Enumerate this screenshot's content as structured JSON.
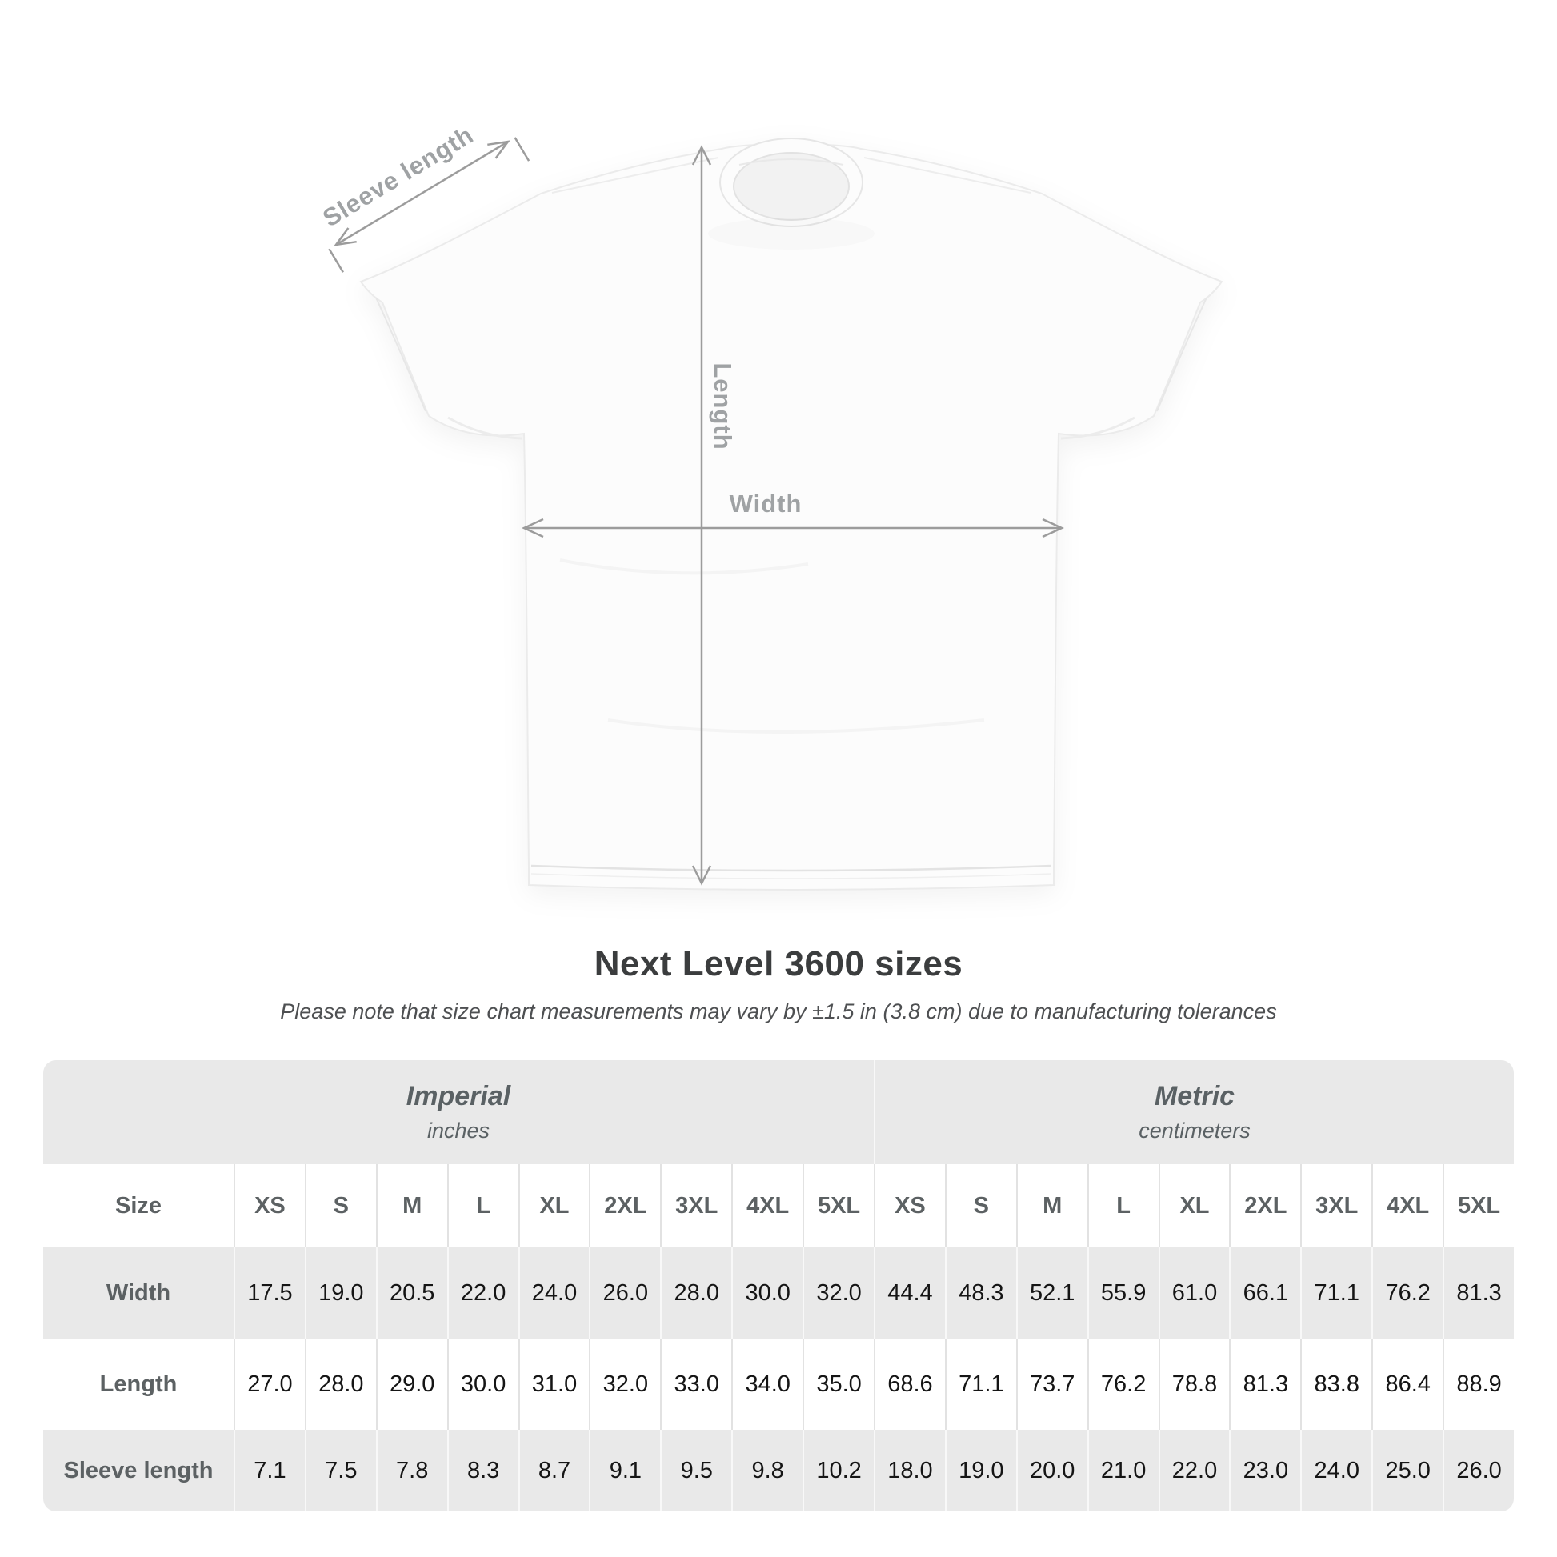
{
  "shirt_diagram": {
    "labels": {
      "sleeve": "Sleeve length",
      "length": "Length",
      "width": "Width"
    },
    "colors": {
      "arrow": "#9c9c9c",
      "label": "#9fa2a4",
      "shirt_fill": "#fcfcfc",
      "shirt_edge": "#ebebeb"
    }
  },
  "heading": {
    "title": "Next Level 3600 sizes",
    "subtitle": "Please note that size chart measurements may vary by ±1.5 in (3.8 cm) due to manufacturing tolerances"
  },
  "table": {
    "size_label": "Size",
    "unit_groups": [
      {
        "name": "Imperial",
        "unit": "inches"
      },
      {
        "name": "Metric",
        "unit": "centimeters"
      }
    ],
    "size_headers": [
      "XS",
      "S",
      "M",
      "L",
      "XL",
      "2XL",
      "3XL",
      "4XL",
      "5XL",
      "XS",
      "S",
      "M",
      "L",
      "XL",
      "2XL",
      "3XL",
      "4XL",
      "5XL"
    ],
    "rows": [
      {
        "label": "Width",
        "values": [
          "17.5",
          "19.0",
          "20.5",
          "22.0",
          "24.0",
          "26.0",
          "28.0",
          "30.0",
          "32.0",
          "44.4",
          "48.3",
          "52.1",
          "55.9",
          "61.0",
          "66.1",
          "71.1",
          "76.2",
          "81.3"
        ]
      },
      {
        "label": "Length",
        "values": [
          "27.0",
          "28.0",
          "29.0",
          "30.0",
          "31.0",
          "32.0",
          "33.0",
          "34.0",
          "35.0",
          "68.6",
          "71.1",
          "73.7",
          "76.2",
          "78.8",
          "81.3",
          "83.8",
          "86.4",
          "88.9"
        ]
      },
      {
        "label": "Sleeve length",
        "values": [
          "7.1",
          "7.5",
          "7.8",
          "8.3",
          "8.7",
          "9.1",
          "9.5",
          "9.8",
          "10.2",
          "18.0",
          "19.0",
          "20.0",
          "21.0",
          "22.0",
          "23.0",
          "24.0",
          "25.0",
          "26.0"
        ]
      }
    ],
    "colors": {
      "band_grey": "#e9e9e9",
      "separator_on_white": "#e2e2e2",
      "separator_on_grey": "#f8f8f8",
      "header_text": "#5c6163",
      "value_text": "#151515"
    }
  }
}
